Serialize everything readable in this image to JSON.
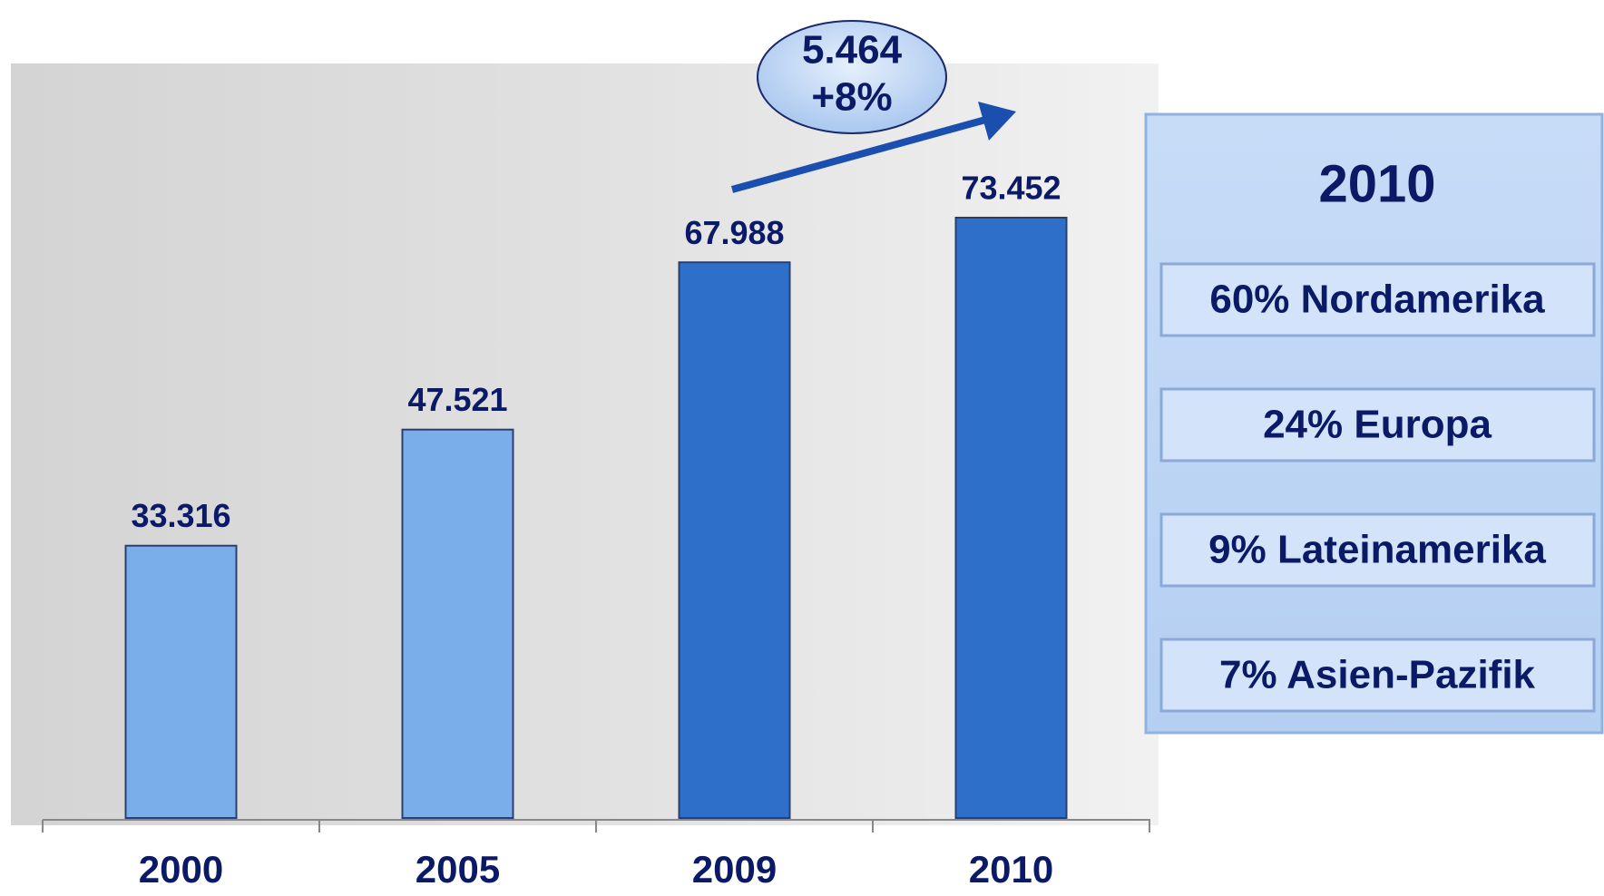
{
  "chart_data": {
    "type": "bar",
    "categories": [
      "2000",
      "2005",
      "2009",
      "2010"
    ],
    "values": [
      33316,
      47521,
      67988,
      73452
    ],
    "value_labels": [
      "33.316",
      "47.521",
      "67.988",
      "73.452"
    ],
    "colors": [
      "#79aeea",
      "#79aeea",
      "#2e6fca",
      "#2e6fca"
    ],
    "annotation": [
      "5.464",
      "+8%"
    ],
    "panel": {
      "title": "2010",
      "items": [
        "60% Nordamerika",
        "24% Europa",
        "9% Lateinamerika",
        "7% Asien-Pazifik"
      ]
    }
  }
}
